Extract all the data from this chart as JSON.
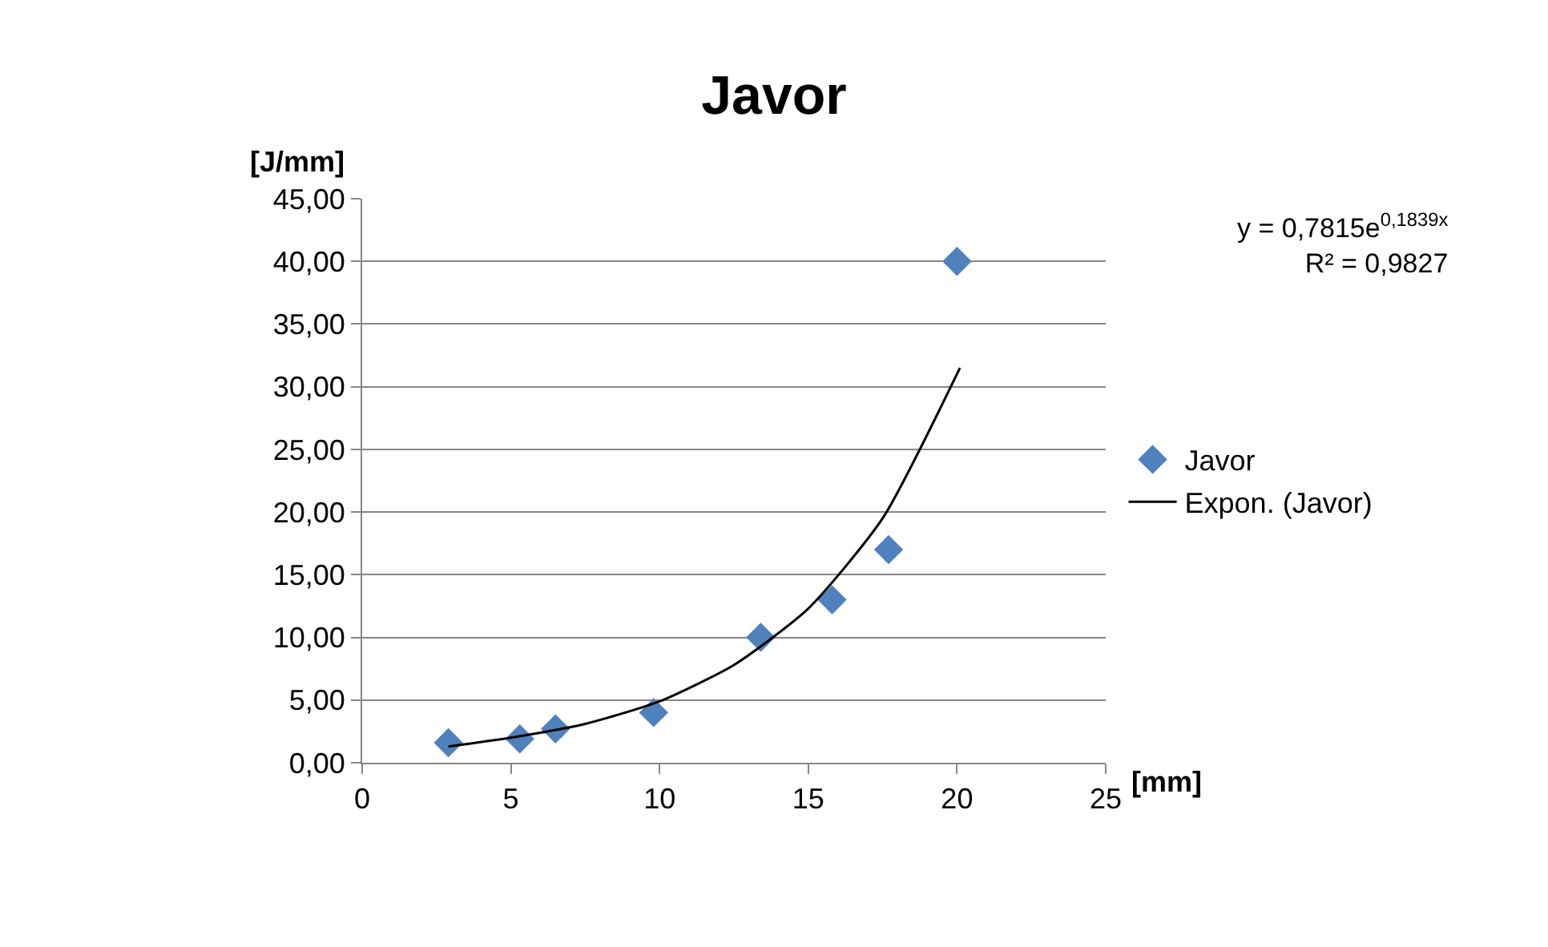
{
  "chart_data": {
    "type": "scatter",
    "title": "Javor",
    "xlabel": "[mm]",
    "ylabel": "[J/mm]",
    "xlim": [
      0,
      25
    ],
    "xticks": [
      0,
      5,
      10,
      15,
      20,
      25
    ],
    "ylim": [
      0,
      45
    ],
    "yticks": [
      {
        "value": 0,
        "label": "0,00"
      },
      {
        "value": 5,
        "label": "5,00"
      },
      {
        "value": 10,
        "label": "10,00"
      },
      {
        "value": 15,
        "label": "15,00"
      },
      {
        "value": 20,
        "label": "20,00"
      },
      {
        "value": 25,
        "label": "25,00"
      },
      {
        "value": 30,
        "label": "30,00"
      },
      {
        "value": 35,
        "label": "35,00"
      },
      {
        "value": 40,
        "label": "40,00"
      },
      {
        "value": 45,
        "label": "45,00"
      }
    ],
    "grid": "y",
    "legend": "right",
    "marker": "diamond",
    "series": [
      {
        "name": "Javor",
        "color": "#4f81bd",
        "x": [
          2.9,
          5.3,
          6.5,
          9.8,
          13.4,
          15.8,
          17.7,
          20.0
        ],
        "values": [
          1.6,
          1.9,
          2.7,
          4.0,
          10.0,
          13.0,
          17.0,
          40.0
        ]
      },
      {
        "name": "Expon. (Javor)",
        "type": "line",
        "color": "#000000",
        "marker": "none",
        "line_style": "solid",
        "x": [
          2.9,
          5.0,
          7.5,
          10.0,
          12.5,
          15.0,
          17.5,
          20.1
        ],
        "values": [
          1.3,
          2.0,
          3.1,
          4.9,
          7.8,
          12.3,
          19.5,
          31.5
        ]
      }
    ],
    "annotations": [
      "y = 0,7815e$^{0,1839x}$\nR² = 0,9827"
    ]
  }
}
